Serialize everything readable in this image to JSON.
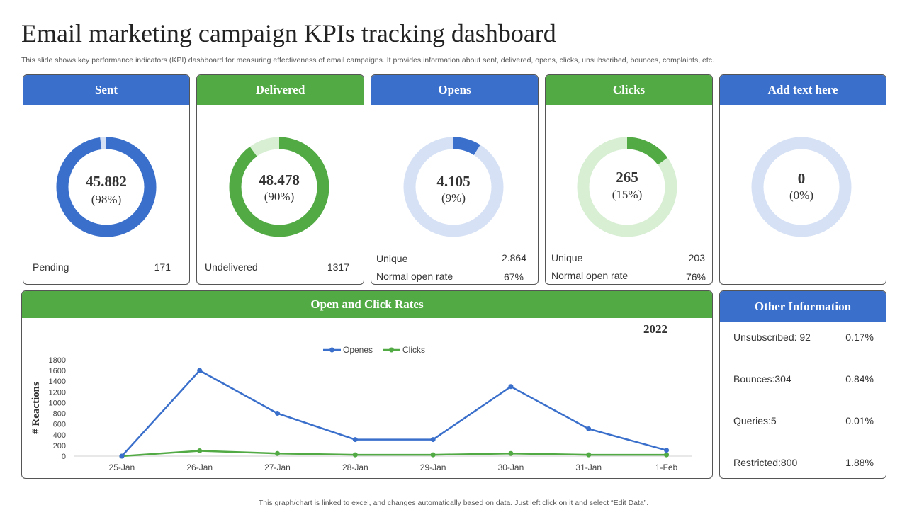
{
  "header": {
    "title": "Email marketing campaign KPIs tracking dashboard",
    "subtitle": "This slide shows key performance indicators (KPI) dashboard for measuring effectiveness of email campaigns. It provides information about sent, delivered, opens, clicks, unsubscribed, bounces, complaints, etc.",
    "footnote": "This graph/chart is linked to excel,  and changes automatically based on data. Just left click on it and select “Edit Data”."
  },
  "colors": {
    "blue": "#3a6fcb",
    "green": "#52aa45",
    "light_blue": "#d6e1f5",
    "light_green": "#d8efd4"
  },
  "kpis": [
    {
      "title": "Sent",
      "value": "45.882",
      "percent": "(98%)",
      "fraction": 0.98,
      "stats": [
        {
          "label": "Pending",
          "value": "171"
        }
      ]
    },
    {
      "title": "Delivered",
      "value": "48.478",
      "percent": "(90%)",
      "fraction": 0.9,
      "stats": [
        {
          "label": "Undelivered",
          "value": "1317"
        }
      ]
    },
    {
      "title": "Opens",
      "value": "4.105",
      "percent": "(9%)",
      "fraction": 0.09,
      "stats": [
        {
          "label": "Unique",
          "value": "2.864"
        },
        {
          "label": "Normal open rate",
          "value": "67%"
        }
      ]
    },
    {
      "title": "Clicks",
      "value": "265",
      "percent": "(15%)",
      "fraction": 0.15,
      "stats": [
        {
          "label": "Unique",
          "value": "203"
        },
        {
          "label": "Normal open rate",
          "value": "76%"
        }
      ]
    },
    {
      "title": "Add text here",
      "value": "0",
      "percent": "(0%)",
      "fraction": 0.0,
      "stats": []
    }
  ],
  "chart_data": {
    "type": "line",
    "title": "Open and Click Rates",
    "year": "2022",
    "ylabel": "# Reactions",
    "categories": [
      "25-Jan",
      "26-Jan",
      "27-Jan",
      "28-Jan",
      "29-Jan",
      "30-Jan",
      "31-Jan",
      "1-Feb"
    ],
    "series": [
      {
        "name": "Openes",
        "color": "#3a6fcb",
        "values": [
          0,
          1600,
          800,
          310,
          310,
          1300,
          510,
          110
        ]
      },
      {
        "name": "Clicks",
        "color": "#52aa45",
        "values": [
          0,
          100,
          50,
          25,
          25,
          50,
          25,
          25
        ]
      }
    ],
    "yticks": [
      "0",
      "200",
      "400",
      "600",
      "800",
      "1000",
      "1200",
      "1400",
      "1600",
      "1800"
    ],
    "ylim": [
      0,
      1800
    ],
    "grid": false,
    "legend": "top"
  },
  "other_information": {
    "title": "Other Information",
    "rows": [
      {
        "label": "Unsubscribed: 92",
        "value": "0.17%"
      },
      {
        "label": "Bounces:304",
        "value": "0.84%"
      },
      {
        "label": "Queries:5",
        "value": "0.01%"
      },
      {
        "label": "Restricted:800",
        "value": "1.88%"
      }
    ]
  }
}
